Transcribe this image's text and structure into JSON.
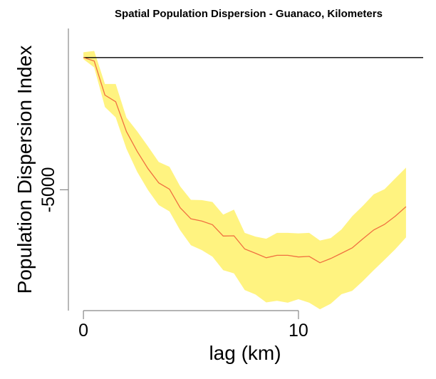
{
  "chart_data": {
    "type": "line",
    "title": "Spatial Population Dispersion - Guanaco, Kilometers",
    "xlabel": "lag (km)",
    "ylabel": "Population Dispersion Index",
    "xlim": [
      -0.7,
      15.8
    ],
    "ylim": [
      -9570,
      1100
    ],
    "x_ticks": [
      0,
      10
    ],
    "y_ticks": [
      -5000
    ],
    "reference_line": {
      "y": 0,
      "color": "#000000"
    },
    "series": [
      {
        "type": "line",
        "color": "#f07040",
        "x": [
          0,
          0.5,
          1.0,
          1.5,
          2.0,
          2.5,
          3.0,
          3.5,
          4.0,
          4.5,
          5.0,
          5.5,
          6.0,
          6.5,
          7.0,
          7.5,
          8.0,
          8.5,
          9.0,
          9.5,
          10.0,
          10.5,
          11.0,
          11.5,
          12.0,
          12.5,
          13.0,
          13.5,
          14.0,
          14.5,
          15.0
        ],
        "y": [
          0,
          -130,
          -1420,
          -1670,
          -2800,
          -3550,
          -4200,
          -4740,
          -4980,
          -5680,
          -6100,
          -6180,
          -6320,
          -6750,
          -6740,
          -7240,
          -7400,
          -7570,
          -7480,
          -7480,
          -7540,
          -7520,
          -7760,
          -7600,
          -7400,
          -7200,
          -6850,
          -6520,
          -6310,
          -6000,
          -5640
        ]
      }
    ],
    "band": {
      "color": "#fff380",
      "x": [
        0,
        0.5,
        1.0,
        1.5,
        2.0,
        2.5,
        3.0,
        3.5,
        4.0,
        4.5,
        5.0,
        5.5,
        6.0,
        6.5,
        7.0,
        7.5,
        8.0,
        8.5,
        9.0,
        9.5,
        10.0,
        10.5,
        11.0,
        11.5,
        12.0,
        12.5,
        13.0,
        13.5,
        14.0,
        14.5,
        15.0
      ],
      "upper": [
        200,
        250,
        -1000,
        -1000,
        -2270,
        -2790,
        -3360,
        -3950,
        -4130,
        -4870,
        -5380,
        -5390,
        -5460,
        -5940,
        -5750,
        -6630,
        -6770,
        -6850,
        -6630,
        -6630,
        -6650,
        -6630,
        -6920,
        -6830,
        -6500,
        -6000,
        -5600,
        -5170,
        -4980,
        -4570,
        -4160
      ],
      "lower": [
        -60,
        -370,
        -1870,
        -2260,
        -3450,
        -4320,
        -5010,
        -5580,
        -5820,
        -6530,
        -7100,
        -7280,
        -7530,
        -8040,
        -8160,
        -8790,
        -8960,
        -9260,
        -9200,
        -9270,
        -9140,
        -9270,
        -9520,
        -9310,
        -8950,
        -8820,
        -8450,
        -8040,
        -7650,
        -7250,
        -6800
      ]
    },
    "grid": false,
    "legend": "none"
  }
}
